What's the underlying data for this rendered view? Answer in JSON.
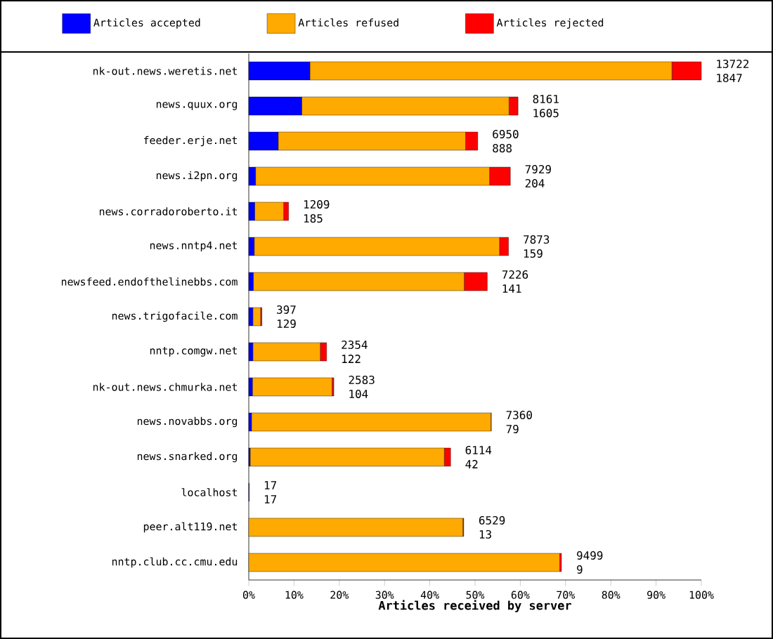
{
  "chart_data": {
    "type": "bar",
    "orientation": "horizontal",
    "stacked": true,
    "xlabel": "Articles received by server",
    "categories": [
      "nk-out.news.weretis.net",
      "news.quux.org",
      "feeder.erje.net",
      "news.i2pn.org",
      "news.corradoroberto.it",
      "news.nntp4.net",
      "newsfeed.endofthelinebbs.com",
      "news.trigofacile.com",
      "nntp.comgw.net",
      "nk-out.news.chmurka.net",
      "news.novabbs.org",
      "news.snarked.org",
      "localhost",
      "peer.alt119.net",
      "nntp.club.cc.cmu.edu"
    ],
    "series": [
      {
        "name": "Articles accepted",
        "color": "#0000ff",
        "values": [
          13.5,
          11.7,
          6.5,
          1.5,
          1.3,
          1.2,
          1.0,
          0.9,
          0.9,
          0.8,
          0.6,
          0.3,
          0.1,
          null,
          null
        ]
      },
      {
        "name": "Articles refused",
        "color": "#ffaa00",
        "values": [
          80.0,
          45.8,
          41.4,
          51.7,
          6.4,
          54.2,
          46.6,
          1.7,
          14.9,
          17.6,
          52.9,
          42.9,
          0,
          47.3,
          68.7
        ]
      },
      {
        "name": "Articles rejected",
        "color": "#ff0000",
        "values": [
          6.5,
          2.0,
          2.7,
          4.6,
          1.1,
          2.0,
          5.1,
          0.3,
          1.4,
          0.4,
          0.1,
          1.4,
          0,
          0.2,
          0.4
        ]
      }
    ],
    "annotations": [
      {
        "text": "13722",
        "x": 100,
        "y": "nk-out.news.weretis.net"
      },
      {
        "text": "1847",
        "x": 100,
        "y": "nk-out.news.weretis.net"
      },
      {
        "text": "8161",
        "x": 59.5,
        "y": "news.quux.org"
      },
      {
        "text": "1605",
        "x": 59.5,
        "y": "news.quux.org"
      },
      {
        "text": "6950",
        "x": 50.6,
        "y": "feeder.erje.net"
      },
      {
        "text": "888",
        "x": 50.6,
        "y": "feeder.erje.net"
      },
      {
        "text": "7929",
        "x": 57.8,
        "y": "news.i2pn.org"
      },
      {
        "text": "204",
        "x": 57.8,
        "y": "news.i2pn.org"
      },
      {
        "text": "1209",
        "x": 8.8,
        "y": "news.corradoroberto.it"
      },
      {
        "text": "185",
        "x": 8.8,
        "y": "news.corradoroberto.it"
      },
      {
        "text": "7873",
        "x": 57.4,
        "y": "news.nntp4.net"
      },
      {
        "text": "159",
        "x": 57.4,
        "y": "news.nntp4.net"
      },
      {
        "text": "7226",
        "x": 52.7,
        "y": "newsfeed.endofthelinebbs.com"
      },
      {
        "text": "141",
        "x": 52.7,
        "y": "newsfeed.endofthelinebbs.com"
      },
      {
        "text": "397",
        "x": 2.9,
        "y": "news.trigofacile.com"
      },
      {
        "text": "129",
        "x": 2.9,
        "y": "news.trigofacile.com"
      },
      {
        "text": "2354",
        "x": 17.2,
        "y": "nntp.comgw.net"
      },
      {
        "text": "122",
        "x": 17.2,
        "y": "nntp.comgw.net"
      },
      {
        "text": "2583",
        "x": 18.8,
        "y": "nk-out.news.chmurka.net"
      },
      {
        "text": "104",
        "x": 18.8,
        "y": "nk-out.news.chmurka.net"
      },
      {
        "text": "7360",
        "x": 53.6,
        "y": "news.novabbs.org"
      },
      {
        "text": "79",
        "x": 53.6,
        "y": "news.novabbs.org"
      },
      {
        "text": "6114",
        "x": 44.6,
        "y": "news.snarked.org"
      },
      {
        "text": "42",
        "x": 44.6,
        "y": "news.snarked.org"
      },
      {
        "text": "17",
        "x": 0.1,
        "y": "localhost"
      },
      {
        "text": "17",
        "x": 0.1,
        "y": "localhost"
      },
      {
        "text": "6529",
        "x": 47.6,
        "y": "peer.alt119.net"
      },
      {
        "text": "13",
        "x": 47.6,
        "y": "peer.alt119.net"
      },
      {
        "text": "9499",
        "x": 69.2,
        "y": "nntp.club.cc.cmu.edu"
      },
      {
        "text": "9",
        "x": 69.2,
        "y": "nntp.club.cc.cmu.edu"
      }
    ],
    "xlim": [
      0,
      100
    ],
    "xticks": [
      {
        "value": 0,
        "label": "0%"
      },
      {
        "value": 10,
        "label": "10%"
      },
      {
        "value": 20,
        "label": "20%"
      },
      {
        "value": 30,
        "label": "30%"
      },
      {
        "value": 40,
        "label": "40%"
      },
      {
        "value": 50,
        "label": "50%"
      },
      {
        "value": 60,
        "label": "60%"
      },
      {
        "value": 70,
        "label": "70%"
      },
      {
        "value": 80,
        "label": "80%"
      },
      {
        "value": 90,
        "label": "90%"
      },
      {
        "value": 100,
        "label": "100%"
      }
    ],
    "legend": "top"
  }
}
